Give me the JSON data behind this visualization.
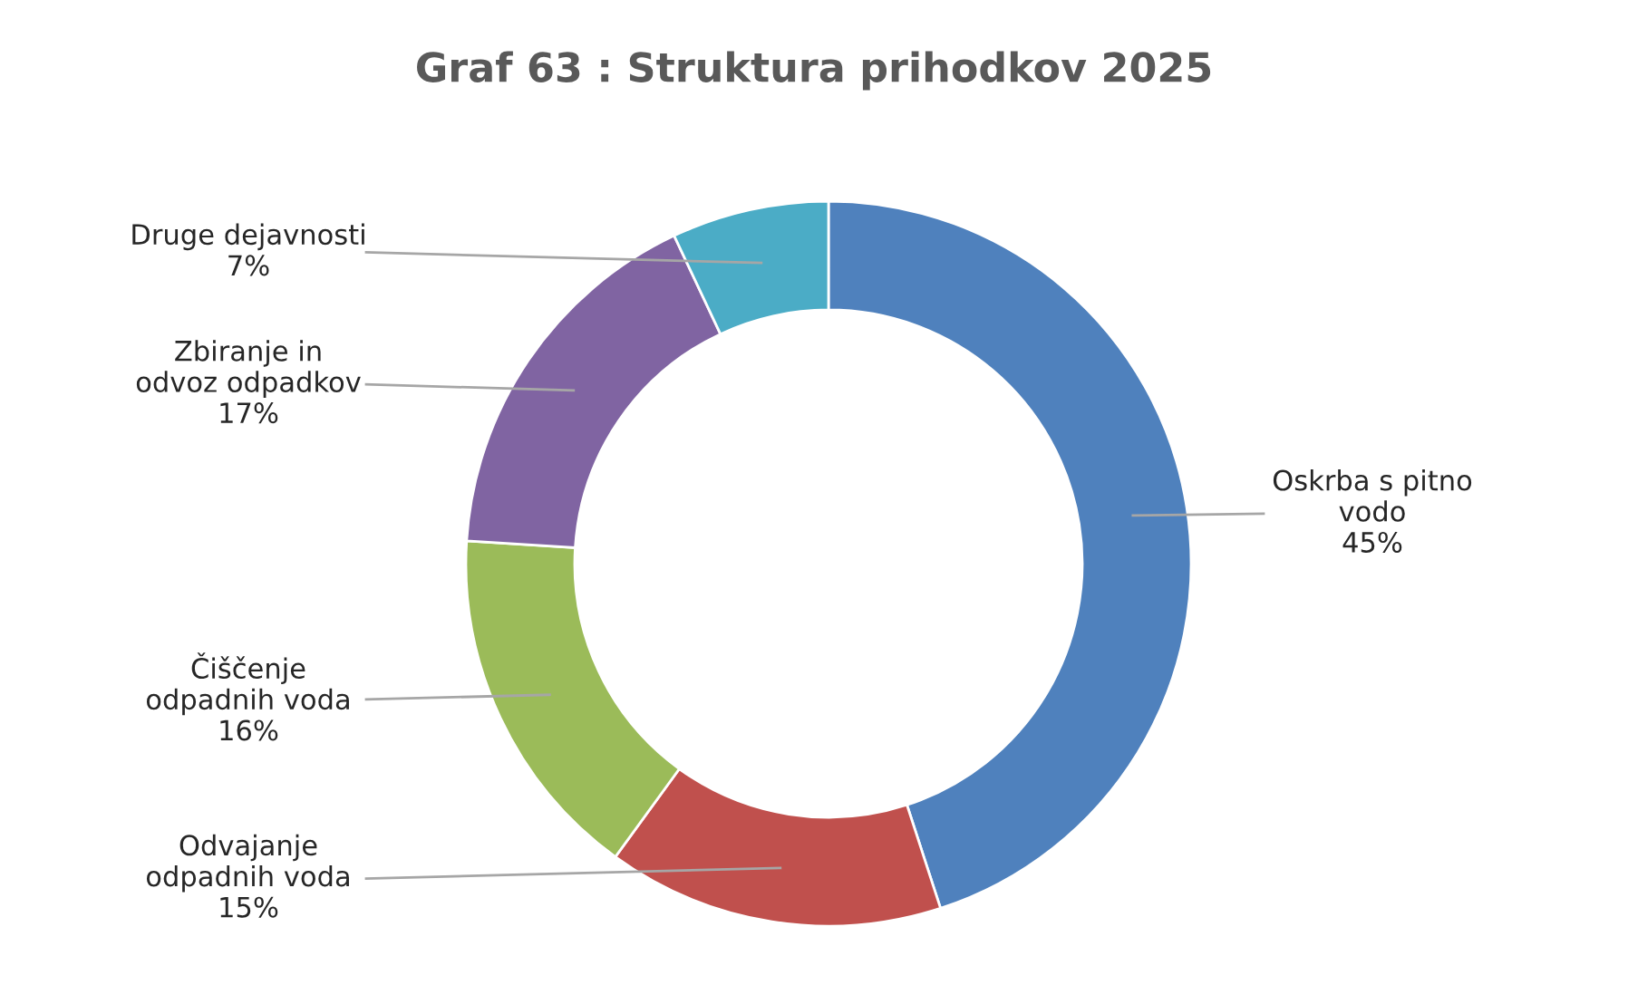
{
  "chart_data": {
    "type": "donut",
    "title": "Graf 63 : Struktura prihodkov 2025",
    "categories": [
      "Oskrba s pitno\nvodo",
      "Odvajanje\nodpadnih voda",
      "Čiščenje\nodpadnih voda",
      "Zbiranje in\nodvoz odpadkov",
      "Druge dejavnosti"
    ],
    "values": [
      45,
      15,
      16,
      17,
      7
    ],
    "colors": [
      "#4f81bd",
      "#c0504d",
      "#9bbb59",
      "#8064a2",
      "#4bacc6"
    ],
    "value_labels": [
      "45%",
      "15%",
      "16%",
      "17%",
      "7%"
    ]
  }
}
